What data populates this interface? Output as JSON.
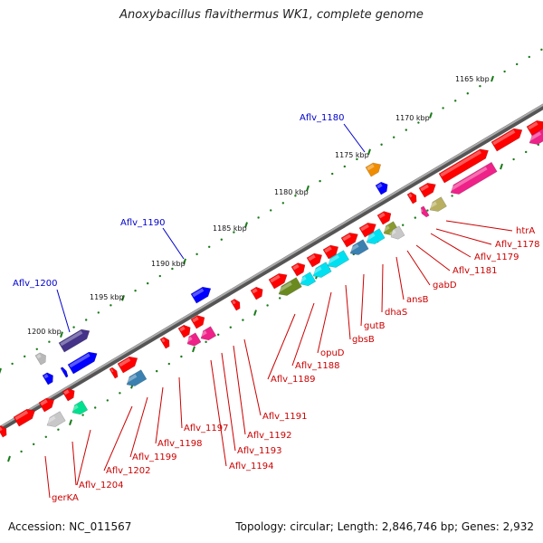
{
  "title": "Anoxybacillus flavithermus WK1, complete genome",
  "footer": {
    "accession": "Accession: NC_011567",
    "summary": "Topology: circular; Length: 2,846,746 bp; Genes: 2,932"
  },
  "colors": {
    "backbone": "#808080",
    "gene_red": "#ff0000",
    "highlight_label": "#0000cc",
    "gene_label": "#cc0000",
    "tick_green": "#1a7a1a"
  },
  "scale_labels": [
    "1165 kbp",
    "1170 kbp",
    "1175 kbp",
    "1180 kbp",
    "1185 kbp",
    "1190 kbp",
    "1195 kbp",
    "1200 kbp"
  ],
  "highlight_labels": [
    "Aflv_1180",
    "Aflv_1190",
    "Aflv_1200"
  ],
  "gene_labels": [
    "htrA",
    "Aflv_1178",
    "Aflv_1179",
    "Aflv_1181",
    "gabD",
    "ansB",
    "dhaS",
    "gutB",
    "gbsB",
    "opuD",
    "Aflv_1188",
    "Aflv_1189",
    "Aflv_1191",
    "Aflv_1192",
    "Aflv_1193",
    "Aflv_1194",
    "Aflv_1197",
    "Aflv_1198",
    "Aflv_1199",
    "Aflv_1202",
    "Aflv_1204",
    "gerKA"
  ]
}
